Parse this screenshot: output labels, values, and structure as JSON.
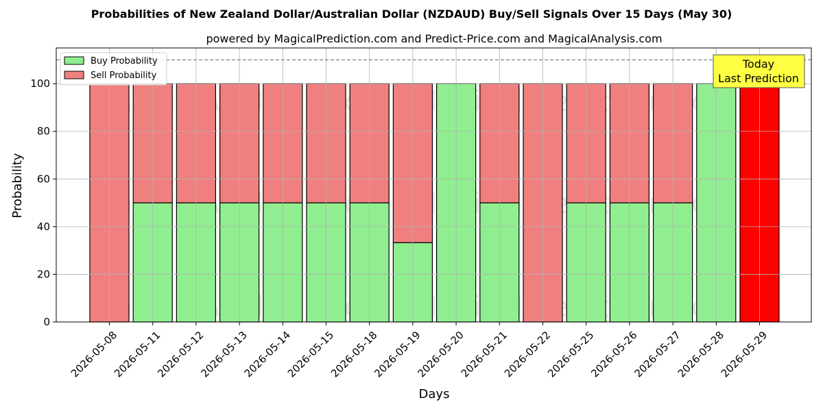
{
  "chart_data": {
    "type": "bar",
    "stacked": true,
    "title": "Probabilities of New Zealand Dollar/Australian Dollar (NZDAUD) Buy/Sell Signals Over 15 Days (May 30)",
    "subtitle": "powered by MagicalPrediction.com and Predict-Price.com and MagicalAnalysis.com",
    "xlabel": "Days",
    "ylabel": "Probability",
    "ylim": [
      0,
      115
    ],
    "yticks": [
      0,
      20,
      40,
      60,
      80,
      100
    ],
    "grid": true,
    "legend_position": "top-left",
    "reference_line": 110,
    "categories": [
      "2026-05-08",
      "2026-05-11",
      "2026-05-12",
      "2026-05-13",
      "2026-05-14",
      "2026-05-15",
      "2026-05-18",
      "2026-05-19",
      "2026-05-20",
      "2026-05-21",
      "2026-05-22",
      "2026-05-25",
      "2026-05-26",
      "2026-05-27",
      "2026-05-28",
      "2026-05-29"
    ],
    "series": [
      {
        "name": "Buy Probability",
        "color": "#90ee90",
        "values": [
          0,
          50,
          50,
          50,
          50,
          50,
          50,
          33.3,
          100,
          50,
          0,
          50,
          50,
          50,
          100,
          0
        ]
      },
      {
        "name": "Sell Probability",
        "color": "#f08080",
        "values": [
          100,
          50,
          50,
          50,
          50,
          50,
          50,
          66.7,
          0,
          50,
          100,
          50,
          50,
          50,
          0,
          100
        ]
      }
    ],
    "highlight": {
      "index": 15,
      "color": "#ff0000"
    },
    "annotation": {
      "lines": [
        "Today",
        "Last Prediction"
      ],
      "background": "#ffff44"
    },
    "watermark": "MagicalAnalysis.com      MagicalPrediction.com"
  }
}
